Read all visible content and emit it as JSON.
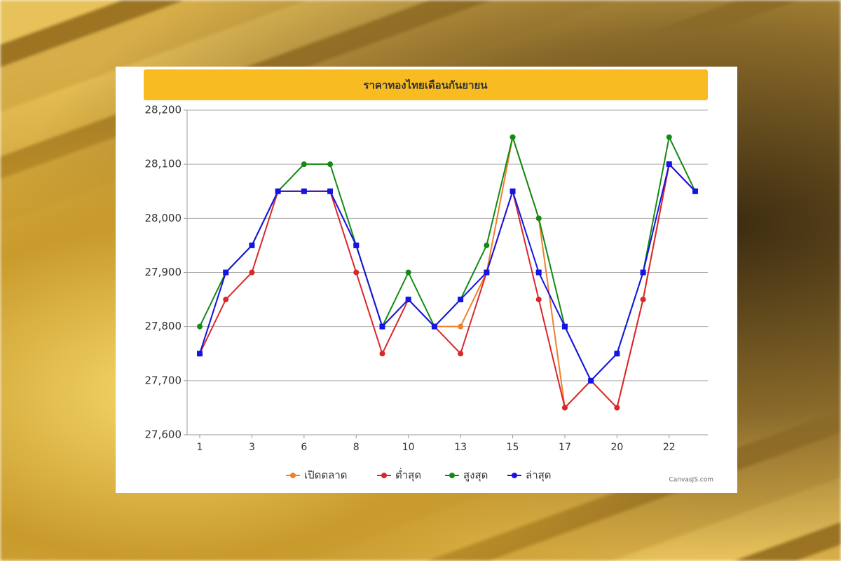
{
  "chart_data": {
    "type": "line",
    "title": "ราคาทองไทยเดือนกันยายน",
    "credit": "CanvasJS.com",
    "categories": [
      "1",
      null,
      "3",
      null,
      "6",
      null,
      "8",
      null,
      "10",
      null,
      "13",
      null,
      "15",
      null,
      "17",
      null,
      "20",
      null,
      "22",
      null
    ],
    "series": [
      {
        "name": "เปิดตลาด",
        "color": "#f07f2a",
        "values": [
          27750,
          27900,
          27950,
          28050,
          28050,
          28050,
          27950,
          27800,
          27850,
          27800,
          27800,
          27900,
          28150,
          28000,
          27650,
          27700,
          27650,
          27850,
          28100,
          28050
        ]
      },
      {
        "name": "ต่ำสุด",
        "color": "#d8282a",
        "values": [
          27750,
          27850,
          27900,
          28050,
          28050,
          28050,
          27900,
          27750,
          27850,
          27800,
          27750,
          27900,
          28050,
          27850,
          27650,
          27700,
          27650,
          27850,
          28100,
          28050
        ]
      },
      {
        "name": "สูงสุด",
        "color": "#138a13",
        "values": [
          27800,
          27900,
          27950,
          28050,
          28100,
          28100,
          27950,
          27800,
          27900,
          27800,
          27850,
          27950,
          28150,
          28000,
          27800,
          27700,
          27750,
          27900,
          28150,
          28050
        ]
      },
      {
        "name": "ล่าสุด",
        "color": "#1414e6",
        "values": [
          27750,
          27900,
          27950,
          28050,
          28050,
          28050,
          27950,
          27800,
          27850,
          27800,
          27850,
          27900,
          28050,
          27900,
          27800,
          27700,
          27750,
          27900,
          28100,
          28050
        ]
      }
    ],
    "ylim": [
      27600,
      28200
    ],
    "yticks": [
      {
        "value": 27600,
        "label": "27,600"
      },
      {
        "value": 27700,
        "label": "27,700"
      },
      {
        "value": 27800,
        "label": "27,800"
      },
      {
        "value": 27900,
        "label": "27,900"
      },
      {
        "value": 28000,
        "label": "28,000"
      },
      {
        "value": 28100,
        "label": "28,100"
      },
      {
        "value": 28200,
        "label": "28,200"
      }
    ],
    "grid": true,
    "legend": "bottom",
    "title_color": "#f8bc22"
  }
}
